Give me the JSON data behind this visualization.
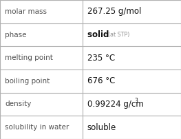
{
  "rows": [
    {
      "label": "molar mass",
      "value": "267.25 g/mol",
      "value_extra": null,
      "superscript": null
    },
    {
      "label": "phase",
      "value": "solid",
      "value_extra": "(at STP)",
      "superscript": null
    },
    {
      "label": "melting point",
      "value": "235 °C",
      "value_extra": null,
      "superscript": null
    },
    {
      "label": "boiling point",
      "value": "676 °C",
      "value_extra": null,
      "superscript": null
    },
    {
      "label": "density",
      "value": "0.99224 g/cm",
      "value_extra": null,
      "superscript": "3"
    },
    {
      "label": "solubility in water",
      "value": "soluble",
      "value_extra": null,
      "superscript": null
    }
  ],
  "bg_color": "#ffffff",
  "border_color": "#b0b0b0",
  "label_color": "#505050",
  "value_color": "#111111",
  "extra_color": "#909090",
  "label_fontsize": 7.5,
  "value_fontsize": 8.5,
  "extra_fontsize": 5.8,
  "super_fontsize": 5.5,
  "col_split": 0.455
}
